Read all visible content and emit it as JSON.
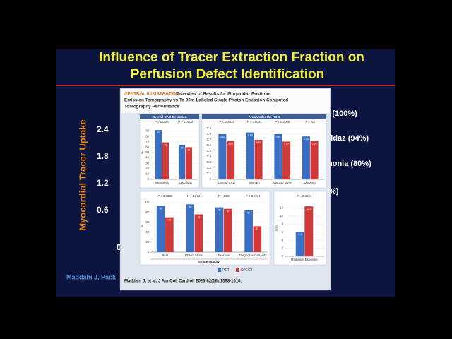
{
  "slide": {
    "title_lines": [
      "Influence of Tracer Extraction Fraction on",
      "Perfusion Defect Identification"
    ],
    "y_axis_label": "Myocardial Tracer Uptake",
    "y_ticks": [
      "2.4",
      "1.8",
      "1.2",
      "0.6",
      "0"
    ],
    "legend_fragments": [
      "r (100%)",
      "ridaz (94%)",
      "nonia (80%)",
      "%)"
    ],
    "footer": "Maddahi J, Pack"
  },
  "illustration": {
    "header_label": "CENTRAL ILLUSTRATION:",
    "header_text": [
      "Overview of Results for Flurpiridaz Positron",
      "Emission Tomography vs Tc-99m-Labeled Single Photon Emission Computed",
      "Tomography Performance"
    ],
    "legend": [
      {
        "name": "PET",
        "color": "#3b6fc4"
      },
      {
        "name": "SPECT",
        "color": "#d23a3a"
      }
    ],
    "citation": "Maddahi J, et al. J Am Coll Cardiol. 2023;82(16):1598-1610.",
    "panels": [
      {
        "title": "Overall CAD Detection",
        "y_label": "%",
        "ylim": [
          0,
          100
        ],
        "yticks": [
          0,
          10,
          20,
          30,
          40,
          50,
          60,
          70,
          80,
          90
        ],
        "categories": [
          "Sensitivity",
          "Specificity"
        ],
        "p_values": [
          "P = 0.0003",
          "P = 0.0004"
        ],
        "series": [
          {
            "values": [
              92,
              64
            ]
          },
          {
            "values": [
              69,
              60
            ]
          }
        ]
      },
      {
        "title": "Area Under the ROC",
        "ylim": [
          0,
          0.95
        ],
        "yticks": [
          0,
          0.1,
          0.2,
          0.3,
          0.4,
          0.5,
          0.6,
          0.7,
          0.8,
          0.9
        ],
        "categories": [
          "Overall CAD",
          "Women",
          "BMI ≥30 kg/m²",
          "Diabetics"
        ],
        "p_values": [
          "P < 0.0001",
          "P = 0.0091",
          "P = 0.0008",
          "P = NS"
        ],
        "series": [
          {
            "values": [
              0.8,
              0.83,
              0.8,
              0.76
            ],
            "value_labels": [
              "0.80",
              "0.83",
              "0.80",
              "0.76"
            ]
          },
          {
            "values": [
              0.68,
              0.7,
              0.67,
              0.68
            ],
            "value_labels": [
              "0.68",
              "0.70",
              "0.67",
              "0.68"
            ]
          }
        ]
      },
      {
        "y_label": "%",
        "ylim": [
          0,
          105
        ],
        "yticks": [
          0,
          20,
          40,
          60,
          80,
          100
        ],
        "x_title": "Image Quality",
        "categories": [
          "Rest",
          "Pharm Stress",
          "Exercise",
          "Diagnostic Certainty"
        ],
        "p_values": [
          "P < 0.0001",
          "P < 0.0001",
          "P < 0.05",
          "P < 0.0001"
        ],
        "series": [
          {
            "values": [
              93,
              96,
              90,
              84
            ]
          },
          {
            "values": [
              70,
              76,
              87,
              52
            ]
          }
        ]
      },
      {
        "y_label": "mSv",
        "ylim": [
          0,
          14
        ],
        "yticks": [
          0,
          2,
          4,
          6,
          8,
          10,
          12
        ],
        "categories": [
          "Radiation Exposure"
        ],
        "p_values": [
          "P = 0.0001"
        ],
        "series": [
          {
            "values": [
              6.1
            ]
          },
          {
            "values": [
              12.4
            ]
          }
        ]
      }
    ]
  }
}
